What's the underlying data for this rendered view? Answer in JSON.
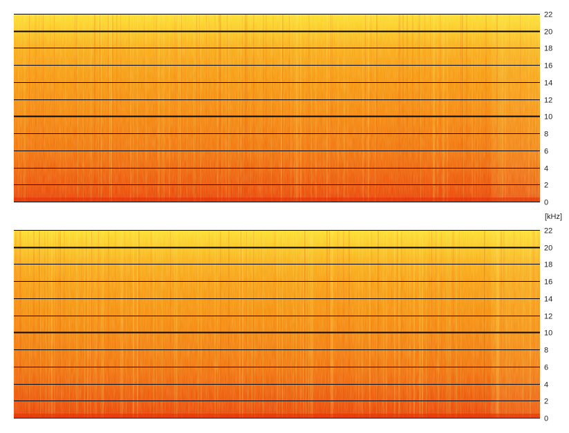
{
  "chart_data": {
    "type": "heatmap",
    "kind": "spectrogram",
    "unit_label": "[kHz]",
    "y_axis": {
      "unit": "kHz",
      "range": [
        0,
        22
      ],
      "ticks": [
        0,
        2,
        4,
        6,
        8,
        10,
        12,
        14,
        16,
        18,
        20,
        22
      ],
      "tick_labels": [
        "0",
        "2",
        "4",
        "6",
        "8",
        "10",
        "12",
        "14",
        "16",
        "18",
        "20",
        "22"
      ],
      "major_ticks": [
        10,
        20
      ],
      "position": "right"
    },
    "grid": true,
    "legend": "none",
    "colormap": {
      "low": "#e8380b",
      "mid": "#f79a14",
      "high": "#fff23a"
    },
    "channels": [
      {
        "id": "channel-1",
        "intensity_profile_by_frequency": [
          {
            "khz": 0,
            "level": 0.08
          },
          {
            "khz": 2,
            "level": 0.18
          },
          {
            "khz": 4,
            "level": 0.26
          },
          {
            "khz": 6,
            "level": 0.33
          },
          {
            "khz": 8,
            "level": 0.38
          },
          {
            "khz": 10,
            "level": 0.42
          },
          {
            "khz": 12,
            "level": 0.46
          },
          {
            "khz": 14,
            "level": 0.5
          },
          {
            "khz": 16,
            "level": 0.55
          },
          {
            "khz": 18,
            "level": 0.62
          },
          {
            "khz": 20,
            "level": 0.76
          },
          {
            "khz": 22,
            "level": 0.9
          }
        ]
      },
      {
        "id": "channel-2",
        "intensity_profile_by_frequency": [
          {
            "khz": 0,
            "level": 0.08
          },
          {
            "khz": 2,
            "level": 0.18
          },
          {
            "khz": 4,
            "level": 0.26
          },
          {
            "khz": 6,
            "level": 0.33
          },
          {
            "khz": 8,
            "level": 0.38
          },
          {
            "khz": 10,
            "level": 0.42
          },
          {
            "khz": 12,
            "level": 0.46
          },
          {
            "khz": 14,
            "level": 0.5
          },
          {
            "khz": 16,
            "level": 0.55
          },
          {
            "khz": 18,
            "level": 0.62
          },
          {
            "khz": 20,
            "level": 0.76
          },
          {
            "khz": 22,
            "level": 0.9
          }
        ]
      }
    ]
  }
}
